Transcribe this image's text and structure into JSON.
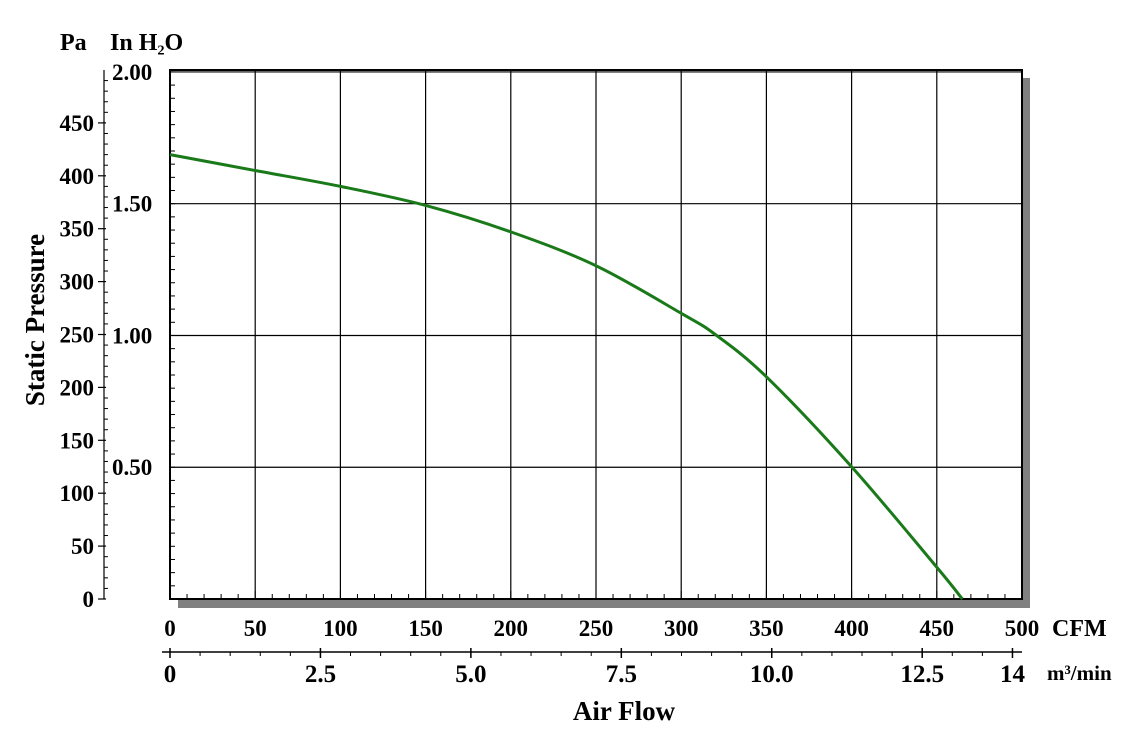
{
  "chart_data": {
    "type": "line",
    "title": "",
    "xlabel": "Air Flow",
    "ylabel": "Static Pressure",
    "x_unit_primary": "CFM",
    "x_unit_secondary": "m³/min",
    "y_unit_primary": "Pa",
    "y_unit_secondary": "In H₂O",
    "xlim": [
      0,
      500
    ],
    "ylim": [
      0,
      500
    ],
    "grid": true,
    "x_ticks": [
      "0",
      "50",
      "100",
      "150",
      "200",
      "250",
      "300",
      "350",
      "400",
      "450",
      "500"
    ],
    "x2_ticks": [
      {
        "label": "0",
        "value": 0
      },
      {
        "label": "2.5",
        "value": 2.5
      },
      {
        "label": "5.0",
        "value": 5.0
      },
      {
        "label": "7.5",
        "value": 7.5
      },
      {
        "label": "10.0",
        "value": 10.0
      },
      {
        "label": "12.5",
        "value": 12.5
      },
      {
        "label": "14",
        "value": 14
      }
    ],
    "y_ticks": [
      "0",
      "50",
      "100",
      "150",
      "200",
      "250",
      "300",
      "350",
      "400",
      "450"
    ],
    "y2_ticks": [
      {
        "label": "0.50",
        "value": 0.5
      },
      {
        "label": "1.00",
        "value": 1.0
      },
      {
        "label": "1.50",
        "value": 1.5
      },
      {
        "label": "2.00",
        "value": 2.0
      }
    ],
    "series": [
      {
        "color": "#1a7a1a",
        "x": [
          0,
          50,
          100,
          150,
          200,
          250,
          300,
          320,
          350,
          400,
          450,
          465
        ],
        "y": [
          420,
          405,
          390,
          372,
          347,
          315,
          270,
          250,
          210,
          125,
          30,
          0
        ]
      }
    ]
  }
}
